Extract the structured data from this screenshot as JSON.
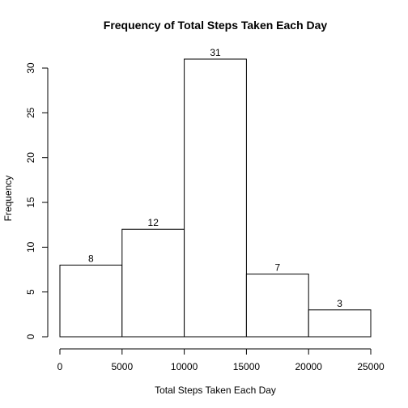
{
  "chart_data": {
    "type": "bar",
    "title": "Frequency of Total Steps Taken Each Day",
    "xlabel": "Total Steps Taken Each Day",
    "ylabel": "Frequency",
    "bins": [
      {
        "from": 0,
        "to": 5000,
        "count": 8,
        "label": "8"
      },
      {
        "from": 5000,
        "to": 10000,
        "count": 12,
        "label": "12"
      },
      {
        "from": 10000,
        "to": 15000,
        "count": 31,
        "label": "31"
      },
      {
        "from": 15000,
        "to": 20000,
        "count": 7,
        "label": "7"
      },
      {
        "from": 20000,
        "to": 25000,
        "count": 3,
        "label": "3"
      }
    ],
    "xlim": [
      0,
      25000
    ],
    "ylim": [
      0,
      31
    ],
    "x_ticks": [
      "0",
      "5000",
      "10000",
      "15000",
      "20000",
      "25000"
    ],
    "y_ticks": [
      "0",
      "5",
      "10",
      "15",
      "20",
      "25",
      "30"
    ],
    "grid": false,
    "bar_fill": "#ffffff",
    "bar_stroke": "#000000"
  }
}
